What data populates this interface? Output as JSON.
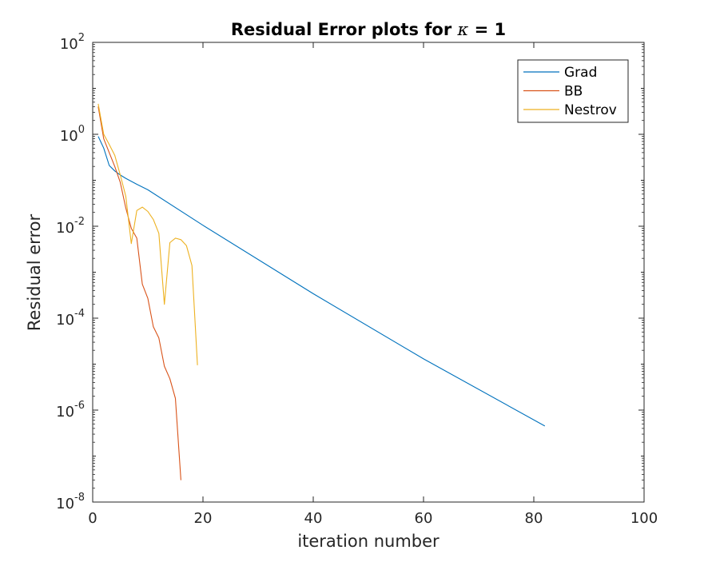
{
  "chart_data": {
    "type": "line",
    "title_prefix": "Residual Error plots for ",
    "title_symbol": "κ",
    "title_suffix": " = 1",
    "xlabel": "iteration number",
    "ylabel": "Residual error",
    "xlim": [
      0,
      100
    ],
    "ylim": [
      1e-08,
      100
    ],
    "yscale": "log",
    "xticks": [
      0,
      20,
      40,
      60,
      80,
      100
    ],
    "yticks": [
      {
        "value": 100,
        "base": "10",
        "exp": "2"
      },
      {
        "value": 1,
        "base": "10",
        "exp": "0"
      },
      {
        "value": 0.01,
        "base": "10",
        "exp": "-2"
      },
      {
        "value": 0.0001,
        "base": "10",
        "exp": "-4"
      },
      {
        "value": 1e-06,
        "base": "10",
        "exp": "-6"
      },
      {
        "value": 1e-08,
        "base": "10",
        "exp": "-8"
      }
    ],
    "grid": false,
    "legend_position": "top-right",
    "series": [
      {
        "name": "Grad",
        "color": "#0072BD",
        "x": [
          1,
          2,
          3,
          4,
          5,
          6,
          8,
          10,
          20,
          40,
          60,
          82
        ],
        "y": [
          0.9,
          0.5,
          0.21,
          0.16,
          0.13,
          0.11,
          0.082,
          0.062,
          0.0105,
          0.00034,
          1.3e-05,
          4.5e-07
        ]
      },
      {
        "name": "BB",
        "color": "#D95319",
        "x": [
          1,
          2,
          3,
          4,
          5,
          6,
          7,
          8,
          9,
          10,
          11,
          12,
          13,
          14,
          15,
          16
        ],
        "y": [
          4.0,
          0.8,
          0.4,
          0.2,
          0.09,
          0.025,
          0.009,
          0.0055,
          0.00055,
          0.00027,
          6.5e-05,
          3.7e-05,
          9e-06,
          4.8e-06,
          1.8e-06,
          3e-08
        ]
      },
      {
        "name": "Nestrov",
        "color": "#EDB120",
        "x": [
          1,
          2,
          3,
          4,
          5,
          6,
          7,
          8,
          9,
          10,
          11,
          12,
          13,
          14,
          15,
          16,
          17,
          18,
          19
        ],
        "y": [
          4.6,
          1.0,
          0.6,
          0.35,
          0.13,
          0.045,
          0.0042,
          0.022,
          0.026,
          0.021,
          0.014,
          0.007,
          0.0002,
          0.0044,
          0.0055,
          0.0051,
          0.0038,
          0.0014,
          9.5e-06
        ]
      }
    ]
  }
}
